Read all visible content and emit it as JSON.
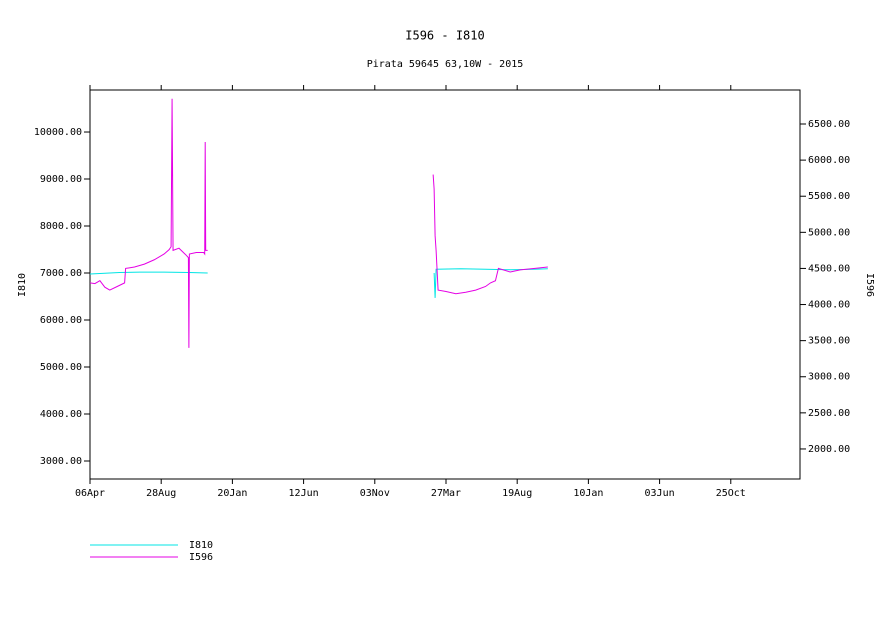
{
  "chart_data": {
    "type": "line",
    "title": "I596 - I810",
    "subtitle": "Pirata 59645 63,10W - 2015",
    "y_label": "I810",
    "y2_label": "I596",
    "xlim": [
      0,
      1436
    ],
    "xticks": [
      {
        "value": 0,
        "label": "06Apr"
      },
      {
        "value": 144,
        "label": "28Aug"
      },
      {
        "value": 288,
        "label": "20Jan"
      },
      {
        "value": 432,
        "label": "12Jun"
      },
      {
        "value": 576,
        "label": "03Nov"
      },
      {
        "value": 720,
        "label": "27Mar"
      },
      {
        "value": 864,
        "label": "19Aug"
      },
      {
        "value": 1008,
        "label": "10Jan"
      },
      {
        "value": 1152,
        "label": "03Jun"
      },
      {
        "value": 1296,
        "label": "25Oct"
      }
    ],
    "ylim": [
      2617,
      10894
    ],
    "yticks": [
      {
        "value": 3000,
        "label": "3000.00"
      },
      {
        "value": 4000,
        "label": "4000.00"
      },
      {
        "value": 5000,
        "label": "5000.00"
      },
      {
        "value": 6000,
        "label": "6000.00"
      },
      {
        "value": 7000,
        "label": "7000.00"
      },
      {
        "value": 8000,
        "label": "8000.00"
      },
      {
        "value": 9000,
        "label": "9000.00"
      },
      {
        "value": 10000,
        "label": "10000.00"
      }
    ],
    "y2lim": [
      1584,
      6971
    ],
    "y2ticks": [
      {
        "value": 2000,
        "label": "2000.00"
      },
      {
        "value": 2500,
        "label": "2500.00"
      },
      {
        "value": 3000,
        "label": "3000.00"
      },
      {
        "value": 3500,
        "label": "3500.00"
      },
      {
        "value": 4000,
        "label": "4000.00"
      },
      {
        "value": 4500,
        "label": "4500.00"
      },
      {
        "value": 5000,
        "label": "5000.00"
      },
      {
        "value": 5500,
        "label": "5500.00"
      },
      {
        "value": 6000,
        "label": "6000.00"
      },
      {
        "value": 6500,
        "label": "6500.00"
      }
    ],
    "series": [
      {
        "name": "I810",
        "color": "#00e5e5",
        "axis": "y",
        "x": [
          0,
          20,
          40,
          60,
          100,
          150,
          200,
          238,
          467,
          696,
          698,
          700,
          750,
          800,
          850,
          900,
          926
        ],
        "values": [
          6980,
          6990,
          7000,
          7010,
          7020,
          7020,
          7010,
          7000,
          null,
          7000,
          6470,
          7080,
          7090,
          7080,
          7070,
          7080,
          7090
        ]
      },
      {
        "name": "I596",
        "color": "#e500e5",
        "axis": "y2",
        "x": [
          0,
          10,
          20,
          30,
          40,
          55,
          70,
          72,
          90,
          110,
          130,
          150,
          160,
          164,
          166,
          168,
          180,
          195,
          199,
          200,
          201,
          215,
          230,
          232,
          233,
          234,
          238,
          467,
          694,
          696,
          698,
          700,
          704,
          720,
          740,
          760,
          780,
          800,
          810,
          820,
          826,
          850,
          870,
          900,
          926
        ],
        "values": [
          4300,
          4290,
          4330,
          4240,
          4200,
          4250,
          4300,
          4500,
          4520,
          4560,
          4620,
          4700,
          4760,
          4800,
          6850,
          4750,
          4780,
          4680,
          4650,
          3400,
          4700,
          4720,
          4720,
          4700,
          6250,
          4750,
          4750,
          null,
          5800,
          5600,
          4950,
          4750,
          4200,
          4180,
          4150,
          4170,
          4200,
          4250,
          4300,
          4330,
          4500,
          4450,
          4480,
          4500,
          4520
        ]
      }
    ]
  }
}
